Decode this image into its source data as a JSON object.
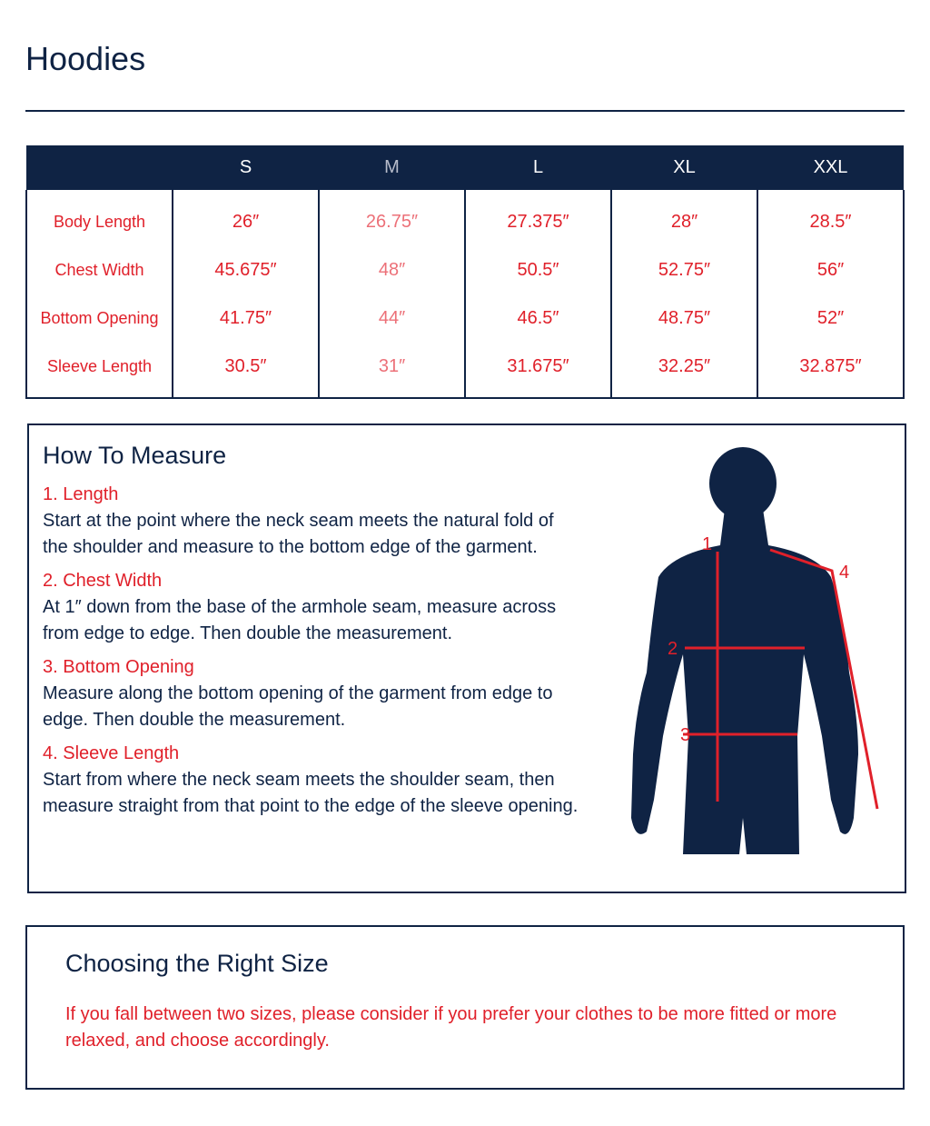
{
  "title": "Hoodies",
  "table": {
    "header": [
      "S",
      "M",
      "L",
      "XL",
      "XXL"
    ],
    "rows": [
      {
        "label": "Body Length",
        "cells": [
          "26″",
          "26.75″",
          "27.375″",
          "28″",
          "28.5″"
        ]
      },
      {
        "label": "Chest Width",
        "cells": [
          "45.675″",
          "48″",
          "50.5″",
          "52.75″",
          "56″"
        ]
      },
      {
        "label": "Bottom Opening",
        "cells": [
          "41.75″",
          "44″",
          "46.5″",
          "48.75″",
          "52″"
        ]
      },
      {
        "label": "Sleeve Length",
        "cells": [
          "30.5″",
          "31″",
          "31.675″",
          "32.25″",
          "32.875″"
        ]
      }
    ]
  },
  "measure": {
    "title": "How To Measure",
    "steps": [
      {
        "heading": "1. Length",
        "text": "Start at the point where the neck seam meets the natural fold of the shoulder and measure to the bottom edge of the garment."
      },
      {
        "heading": "2. Chest Width",
        "text": "At 1″ down from the base of the armhole seam, measure across from edge to edge. Then double the measurement."
      },
      {
        "heading": "3. Bottom Opening",
        "text": "Measure along the bottom opening of the garment from edge to edge. Then double the measurement."
      },
      {
        "heading": "4. Sleeve Length",
        "text": "Start from where the neck seam meets the shoulder seam, then measure straight from that point to the edge of the sleeve opening."
      }
    ],
    "figure_labels": [
      "1",
      "2",
      "3",
      "4"
    ]
  },
  "choosing": {
    "title": "Choosing the Right Size",
    "text": "If you fall between two sizes, please consider if you prefer your clothes to be more fitted or more relaxed, and choose accordingly."
  }
}
